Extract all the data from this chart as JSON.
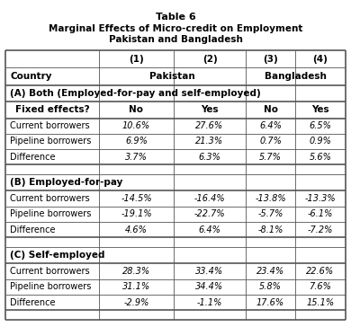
{
  "title_line1": "Table 6",
  "title_line2": "Marginal Effects of Micro-credit on Employment",
  "title_line3": "Pakistan and Bangladesh",
  "section_A_header": "(A) Both (Employed-for-pay and self-employed)",
  "section_A_rows": [
    [
      "Current borrowers",
      "10.6%",
      "27.6%",
      "6.4%",
      "6.5%"
    ],
    [
      "Pipeline borrowers",
      "6.9%",
      "21.3%",
      "0.7%",
      "0.9%"
    ],
    [
      "Difference",
      "3.7%",
      "6.3%",
      "5.7%",
      "5.6%"
    ]
  ],
  "section_B_header": "(B) Employed-for-pay",
  "section_B_rows": [
    [
      "Current borrowers",
      "-14.5%",
      "-16.4%",
      "-13.8%",
      "-13.3%"
    ],
    [
      "Pipeline borrowers",
      "-19.1%",
      "-22.7%",
      "-5.7%",
      "-6.1%"
    ],
    [
      "Difference",
      "4.6%",
      "6.4%",
      "-8.1%",
      "-7.2%"
    ]
  ],
  "section_C_header": "(C) Self-employed",
  "section_C_rows": [
    [
      "Current borrowers",
      "28.3%",
      "33.4%",
      "23.4%",
      "22.6%"
    ],
    [
      "Pipeline borrowers",
      "31.1%",
      "34.4%",
      "5.8%",
      "7.6%"
    ],
    [
      "Difference",
      "-2.9%",
      "-1.1%",
      "17.6%",
      "15.1%"
    ]
  ],
  "bg_color": "white",
  "line_color": "#555555",
  "thick_lw": 1.2,
  "thin_lw": 0.6
}
